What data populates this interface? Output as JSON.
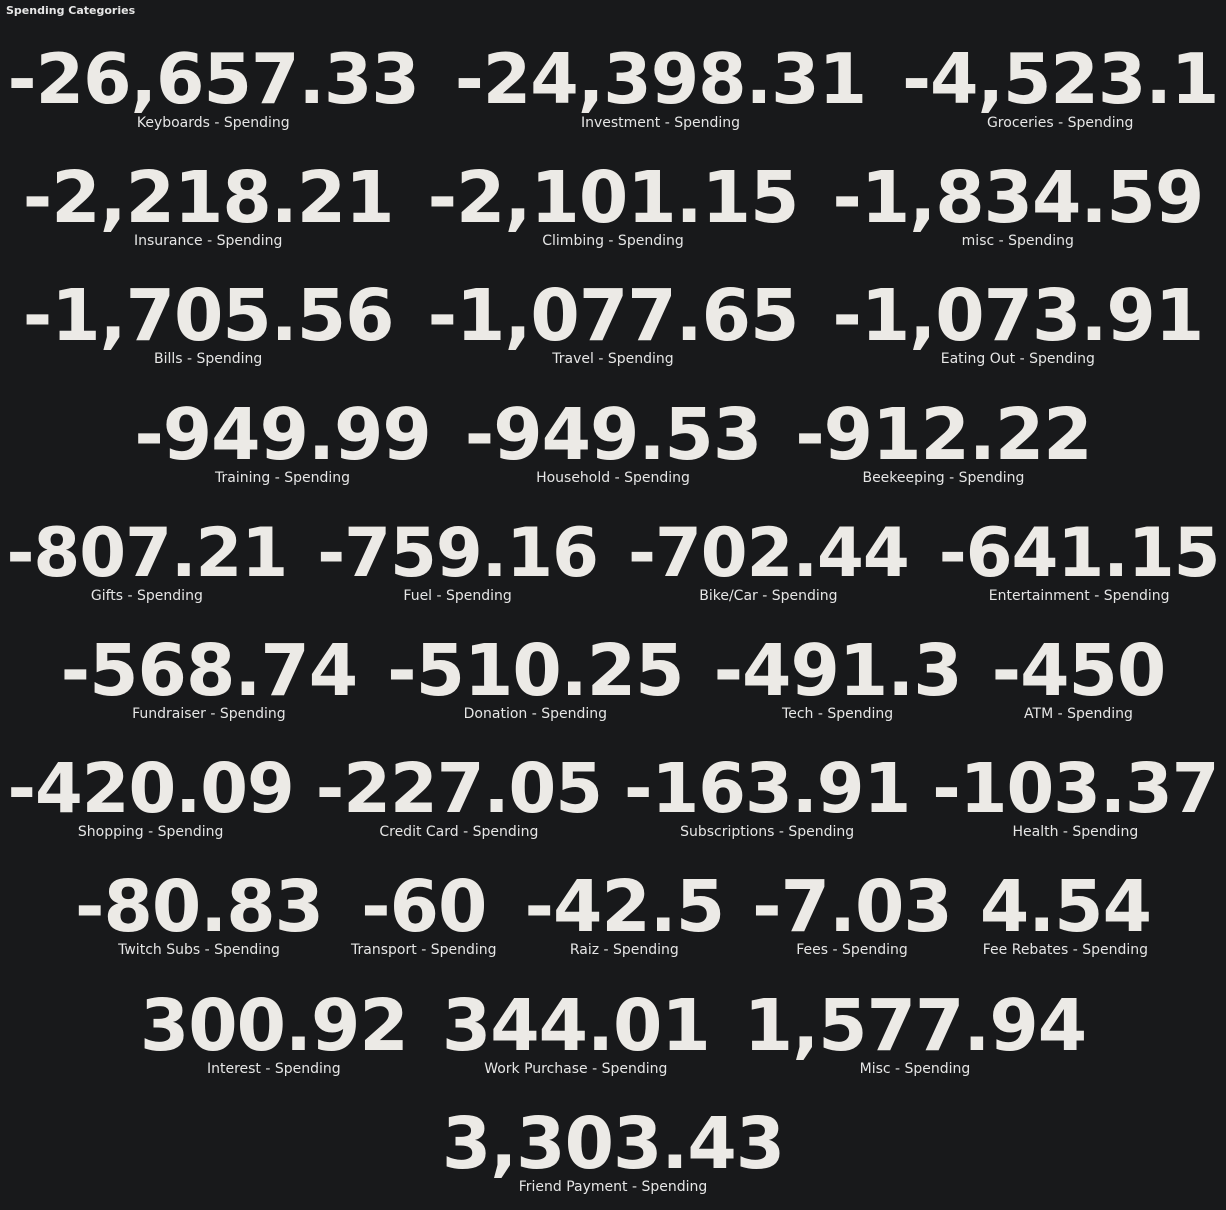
{
  "panel": {
    "title": "Spending Categories"
  },
  "colors": {
    "background": "#18191b",
    "value_text": "#eceae6",
    "label_text": "#e6e6e6"
  },
  "rows": [
    [
      {
        "value": "-26,657.33",
        "label": "Keyboards - Spending"
      },
      {
        "value": "-24,398.31",
        "label": "Investment - Spending"
      },
      {
        "value": "-4,523.1",
        "label": "Groceries - Spending"
      }
    ],
    [
      {
        "value": "-2,218.21",
        "label": "Insurance - Spending"
      },
      {
        "value": "-2,101.15",
        "label": "Climbing - Spending"
      },
      {
        "value": "-1,834.59",
        "label": "misc - Spending"
      }
    ],
    [
      {
        "value": "-1,705.56",
        "label": "Bills - Spending"
      },
      {
        "value": "-1,077.65",
        "label": "Travel - Spending"
      },
      {
        "value": "-1,073.91",
        "label": "Eating Out - Spending"
      }
    ],
    [
      {
        "value": "-949.99",
        "label": "Training - Spending"
      },
      {
        "value": "-949.53",
        "label": "Household - Spending"
      },
      {
        "value": "-912.22",
        "label": "Beekeeping - Spending"
      }
    ],
    [
      {
        "value": "-807.21",
        "label": "Gifts - Spending"
      },
      {
        "value": "-759.16",
        "label": "Fuel - Spending"
      },
      {
        "value": "-702.44",
        "label": "Bike/Car - Spending"
      },
      {
        "value": "-641.15",
        "label": "Entertainment - Spending"
      }
    ],
    [
      {
        "value": "-568.74",
        "label": "Fundraiser - Spending"
      },
      {
        "value": "-510.25",
        "label": "Donation - Spending"
      },
      {
        "value": "-491.3",
        "label": "Tech - Spending"
      },
      {
        "value": "-450",
        "label": "ATM - Spending"
      }
    ],
    [
      {
        "value": "-420.09",
        "label": "Shopping - Spending"
      },
      {
        "value": "-227.05",
        "label": "Credit Card - Spending"
      },
      {
        "value": "-163.91",
        "label": "Subscriptions - Spending"
      },
      {
        "value": "-103.37",
        "label": "Health - Spending"
      }
    ],
    [
      {
        "value": "-80.83",
        "label": "Twitch Subs - Spending"
      },
      {
        "value": "-60",
        "label": "Transport - Spending"
      },
      {
        "value": "-42.5",
        "label": "Raiz - Spending"
      },
      {
        "value": "-7.03",
        "label": "Fees - Spending"
      },
      {
        "value": "4.54",
        "label": "Fee Rebates - Spending"
      }
    ],
    [
      {
        "value": "300.92",
        "label": "Interest - Spending"
      },
      {
        "value": "344.01",
        "label": "Work Purchase - Spending"
      },
      {
        "value": "1,577.94",
        "label": "Misc - Spending"
      }
    ],
    [
      {
        "value": "3,303.43",
        "label": "Friend Payment - Spending"
      }
    ]
  ]
}
